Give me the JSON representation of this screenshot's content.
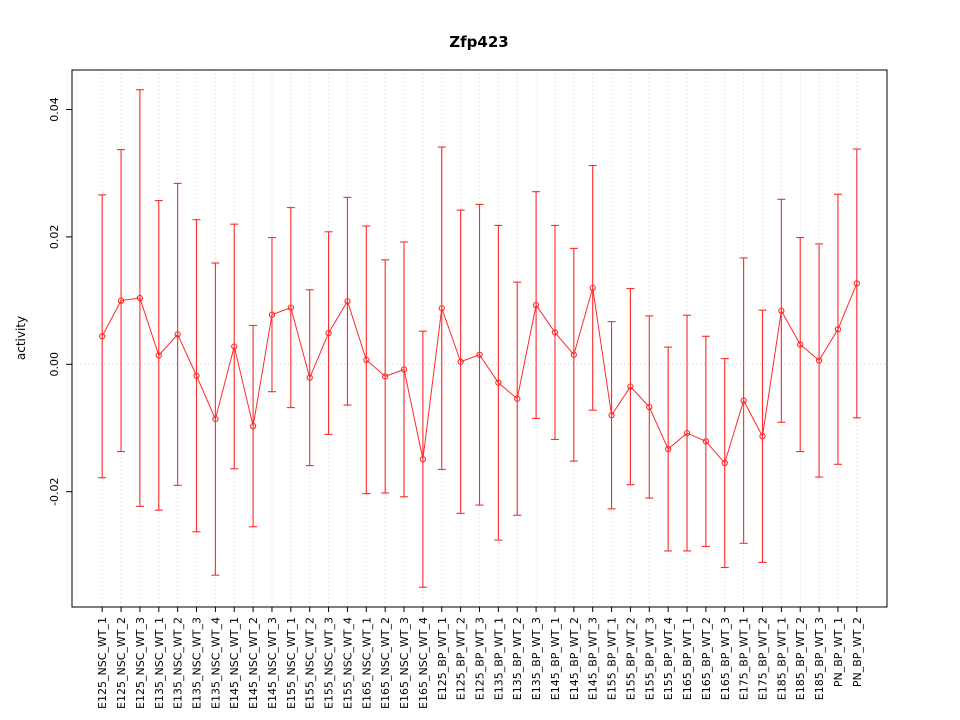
{
  "chart_data": {
    "type": "line",
    "title": "Zfp423",
    "xlabel": "",
    "ylabel": "activity",
    "ylim": [
      -0.0381,
      0.0462
    ],
    "yticks": [
      -0.02,
      0.0,
      0.02,
      0.04
    ],
    "ytick_labels": [
      "-0.02",
      "0.00",
      "0.02",
      "0.04"
    ],
    "grid": "dotted-vertical-per-category-plus-dotted-zero-line",
    "legend_position": "none",
    "series_color": "#ff2a2a",
    "grid_color": "#d6d6d6",
    "axis_color": "#000000",
    "point_style": "open-circle",
    "error_bars": true,
    "categories": [
      "E125_NSC_WT_1",
      "E125_NSC_WT_2",
      "E125_NSC_WT_3",
      "E135_NSC_WT_1",
      "E135_NSC_WT_2",
      "E135_NSC_WT_3",
      "E135_NSC_WT_4",
      "E145_NSC_WT_1",
      "E145_NSC_WT_2",
      "E145_NSC_WT_3",
      "E155_NSC_WT_1",
      "E155_NSC_WT_2",
      "E155_NSC_WT_3",
      "E155_NSC_WT_4",
      "E165_NSC_WT_1",
      "E165_NSC_WT_2",
      "E165_NSC_WT_3",
      "E165_NSC_WT_4",
      "E125_BP_WT_1",
      "E125_BP_WT_2",
      "E125_BP_WT_3",
      "E135_BP_WT_1",
      "E135_BP_WT_2",
      "E135_BP_WT_3",
      "E145_BP_WT_1",
      "E145_BP_WT_2",
      "E145_BP_WT_3",
      "E155_BP_WT_1",
      "E155_BP_WT_2",
      "E155_BP_WT_3",
      "E155_BP_WT_4",
      "E165_BP_WT_1",
      "E165_BP_WT_2",
      "E165_BP_WT_3",
      "E175_BP_WT_1",
      "E175_BP_WT_2",
      "E185_BP_WT_1",
      "E185_BP_WT_2",
      "E185_BP_WT_3",
      "PN_BP_WT_1",
      "PN_BP_WT_2"
    ],
    "means": [
      0.0044,
      0.01,
      0.0104,
      0.0014,
      0.0047,
      -0.0018,
      -0.0086,
      0.0028,
      -0.0097,
      0.0078,
      0.0089,
      -0.0021,
      0.0049,
      0.0099,
      0.0007,
      -0.0019,
      -0.0008,
      -0.0149,
      0.0088,
      0.0004,
      0.0015,
      -0.0029,
      -0.0054,
      0.0093,
      0.005,
      0.0015,
      0.012,
      -0.008,
      -0.0035,
      -0.0067,
      -0.0133,
      -0.0108,
      -0.0121,
      -0.0155,
      -0.0057,
      -0.0113,
      0.0084,
      0.0031,
      0.0006,
      0.0055,
      0.0127
    ],
    "lower": [
      -0.0178,
      -0.0137,
      -0.0223,
      -0.0229,
      -0.019,
      -0.0263,
      -0.0331,
      -0.0164,
      -0.0255,
      -0.0043,
      -0.0068,
      -0.0159,
      -0.011,
      -0.0064,
      -0.0203,
      -0.0202,
      -0.0208,
      -0.035,
      -0.0165,
      -0.0234,
      -0.0221,
      -0.0276,
      -0.0237,
      -0.0085,
      -0.0118,
      -0.0152,
      -0.0072,
      -0.0227,
      -0.0189,
      -0.021,
      -0.0293,
      -0.0293,
      -0.0286,
      -0.0319,
      -0.0281,
      -0.0311,
      -0.0091,
      -0.0137,
      -0.0177,
      -0.0157,
      -0.0084
    ],
    "upper": [
      0.0266,
      0.0337,
      0.0431,
      0.0257,
      0.0284,
      0.0227,
      0.0159,
      0.022,
      0.0061,
      0.0199,
      0.0246,
      0.0117,
      0.0208,
      0.0262,
      0.0217,
      0.0164,
      0.0192,
      0.0052,
      0.0341,
      0.0242,
      0.0251,
      0.0218,
      0.0129,
      0.0271,
      0.0218,
      0.0182,
      0.0312,
      0.0067,
      0.0119,
      0.0076,
      0.0027,
      0.0077,
      0.0044,
      0.0009,
      0.0167,
      0.0085,
      0.0259,
      0.0199,
      0.0189,
      0.0267,
      0.0338
    ]
  }
}
